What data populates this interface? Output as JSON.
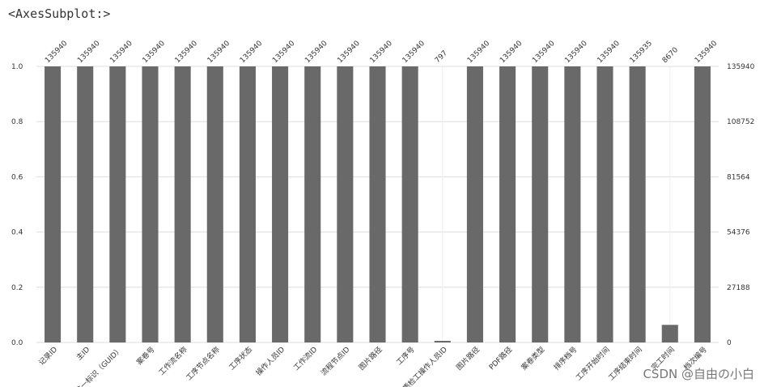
{
  "header_text": "<AxesSubplot:>",
  "watermark": "CSDN @自由の小白",
  "colors": {
    "bar": "#696969",
    "grid": "#dddddd",
    "text": "#333333"
  },
  "chart_data": {
    "type": "bar",
    "categories": [
      "记录ID",
      "主ID",
      "唯一标识（GUID）",
      "案卷号",
      "工作流名称",
      "工序节点名称",
      "工序状态",
      "操作人员ID",
      "工作流ID",
      "流程节点ID",
      "图片路径",
      "工序号",
      "质检工操作人员ID",
      "图片路径",
      "PDF路径",
      "案卷类型",
      "排序档号",
      "工序开始时间",
      "工序结束时间",
      "完工时间",
      "档次编号"
    ],
    "values": [
      1.0,
      1.0,
      1.0,
      1.0,
      1.0,
      1.0,
      1.0,
      1.0,
      1.0,
      1.0,
      1.0,
      1.0,
      0.00586,
      1.0,
      1.0,
      1.0,
      1.0,
      1.0,
      0.99996,
      0.06378,
      1.0
    ],
    "count_labels": [
      "135940",
      "135940",
      "135940",
      "135940",
      "135940",
      "135940",
      "135940",
      "135940",
      "135940",
      "135940",
      "135940",
      "135940",
      "797",
      "135940",
      "135940",
      "135940",
      "135940",
      "135940",
      "135935",
      "8670",
      "135940"
    ],
    "ylim": [
      0,
      1.0
    ],
    "left_ticks": [
      "0.0",
      "0.2",
      "0.4",
      "0.6",
      "0.8",
      "1.0"
    ],
    "left_tick_values": [
      0,
      0.2,
      0.4,
      0.6,
      0.8,
      1.0
    ],
    "right_ticks": [
      "0",
      "27188",
      "54376",
      "81564",
      "108752",
      "135940"
    ],
    "grid": true,
    "title": "",
    "xlabel": "",
    "ylabel": ""
  }
}
